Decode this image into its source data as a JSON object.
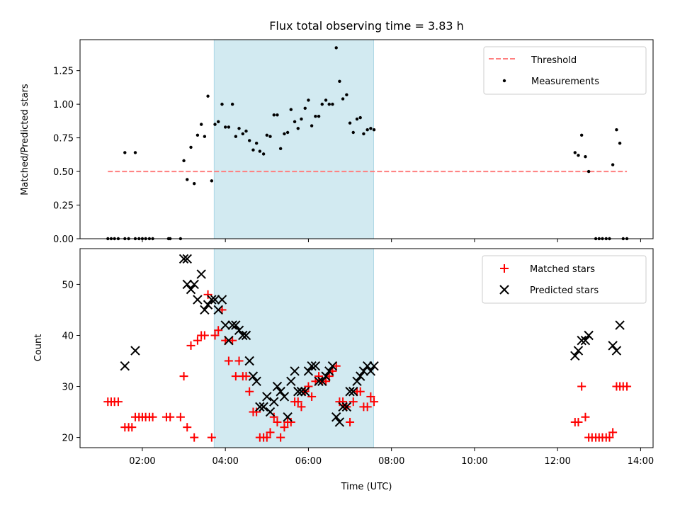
{
  "chart_data": [
    {
      "type": "scatter",
      "title": "Flux total observing time = 3.83 h",
      "xlabel": "",
      "ylabel": "Matched/Predicted stars",
      "xlim": [
        0.5,
        14.3
      ],
      "ylim": [
        0,
        1.48
      ],
      "x_ticks": [
        "02:00",
        "04:00",
        "06:00",
        "08:00",
        "10:00",
        "12:00",
        "14:00"
      ],
      "x_tick_values": [
        2,
        4,
        6,
        8,
        10,
        12,
        14
      ],
      "y_ticks": [
        "0.00",
        "0.25",
        "0.50",
        "0.75",
        "1.00",
        "1.25"
      ],
      "y_tick_values": [
        0,
        0.25,
        0.5,
        0.75,
        1.0,
        1.25
      ],
      "shaded_span": [
        3.73,
        7.57
      ],
      "shaded_color": "#add8e6",
      "legend_position": "upper right",
      "series": [
        {
          "name": "Threshold",
          "kind": "line",
          "style": "dashed",
          "color": "#ff7f7f",
          "x": [
            1.17,
            13.67
          ],
          "y": [
            0.5,
            0.5
          ]
        },
        {
          "name": "Measurements",
          "kind": "scatter",
          "marker": "dot",
          "color": "#000000",
          "x": [
            1.17,
            1.25,
            1.33,
            1.42,
            1.58,
            1.67,
            1.83,
            1.92,
            2.0,
            2.08,
            2.17,
            2.25,
            2.63,
            2.67,
            2.92,
            1.58,
            1.83,
            3.0,
            3.08,
            3.17,
            3.25,
            3.33,
            3.42,
            3.5,
            3.58,
            3.67,
            3.75,
            3.83,
            3.92,
            4.0,
            4.08,
            4.17,
            4.25,
            4.33,
            4.42,
            4.5,
            4.58,
            4.67,
            4.75,
            4.83,
            4.92,
            5.0,
            5.08,
            5.17,
            5.25,
            5.33,
            5.42,
            5.5,
            5.58,
            5.67,
            5.75,
            5.83,
            5.92,
            6.0,
            6.08,
            6.17,
            6.25,
            6.33,
            6.42,
            6.5,
            6.58,
            6.67,
            6.75,
            6.83,
            6.92,
            7.0,
            7.08,
            7.17,
            7.25,
            7.33,
            7.42,
            7.5,
            7.58,
            12.42,
            12.5,
            12.58,
            12.67,
            12.75,
            13.0,
            13.08,
            13.17,
            13.25,
            13.33,
            13.42,
            13.5,
            13.58,
            13.67,
            12.92
          ],
          "y": [
            0,
            0,
            0,
            0,
            0,
            0,
            0,
            0,
            0,
            0,
            0,
            0,
            0,
            0,
            0,
            0.64,
            0.64,
            0.58,
            0.44,
            0.68,
            0.41,
            0.77,
            0.85,
            0.76,
            1.06,
            0.43,
            0.85,
            0.87,
            1.0,
            0.83,
            0.83,
            1.0,
            0.76,
            0.82,
            0.78,
            0.8,
            0.73,
            0.66,
            0.71,
            0.65,
            0.63,
            0.77,
            0.76,
            0.92,
            0.92,
            0.67,
            0.78,
            0.79,
            0.96,
            0.87,
            0.82,
            0.89,
            0.97,
            1.03,
            0.84,
            0.91,
            0.91,
            1.0,
            1.03,
            1.0,
            1.0,
            1.42,
            1.17,
            1.04,
            1.07,
            0.86,
            0.79,
            0.89,
            0.9,
            0.78,
            0.81,
            0.82,
            0.81,
            0.64,
            0.62,
            0.77,
            0.61,
            0.5,
            0,
            0,
            0,
            0,
            0.55,
            0.81,
            0.71,
            0,
            0,
            0
          ]
        }
      ]
    },
    {
      "type": "scatter",
      "title": "",
      "xlabel": "Time (UTC)",
      "ylabel": "Count",
      "xlim": [
        0.5,
        14.3
      ],
      "ylim": [
        18,
        57
      ],
      "x_ticks": [
        "02:00",
        "04:00",
        "06:00",
        "08:00",
        "10:00",
        "12:00",
        "14:00"
      ],
      "x_tick_values": [
        2,
        4,
        6,
        8,
        10,
        12,
        14
      ],
      "y_ticks": [
        "20",
        "30",
        "40",
        "50"
      ],
      "y_tick_values": [
        20,
        30,
        40,
        50
      ],
      "shaded_span": [
        3.73,
        7.57
      ],
      "shaded_color": "#add8e6",
      "legend_position": "upper right",
      "series": [
        {
          "name": "Matched stars",
          "kind": "scatter",
          "marker": "plus",
          "color": "#ff0000",
          "x": [
            1.17,
            1.25,
            1.33,
            1.42,
            1.58,
            1.67,
            1.75,
            1.83,
            1.92,
            2.0,
            2.08,
            2.17,
            2.25,
            2.58,
            2.67,
            2.92,
            3.0,
            3.08,
            3.17,
            3.25,
            3.33,
            3.42,
            3.5,
            3.58,
            3.67,
            3.75,
            3.83,
            3.92,
            4.0,
            4.08,
            4.17,
            4.25,
            4.33,
            4.42,
            4.5,
            4.58,
            4.67,
            4.75,
            4.83,
            4.92,
            5.0,
            5.08,
            5.17,
            5.25,
            5.33,
            5.42,
            5.5,
            5.58,
            5.67,
            5.75,
            5.83,
            5.92,
            6.0,
            6.08,
            6.17,
            6.25,
            6.33,
            6.42,
            6.5,
            6.58,
            6.67,
            6.75,
            6.83,
            6.92,
            7.0,
            7.08,
            7.17,
            7.25,
            7.33,
            7.42,
            7.5,
            7.58,
            12.42,
            12.5,
            12.58,
            12.67,
            12.75,
            12.83,
            12.92,
            13.0,
            13.08,
            13.17,
            13.25,
            13.33,
            13.42,
            13.5,
            13.58,
            13.67
          ],
          "y": [
            27,
            27,
            27,
            27,
            22,
            22,
            22,
            24,
            24,
            24,
            24,
            24,
            24,
            24,
            24,
            24,
            32,
            22,
            38,
            20,
            39,
            40,
            40,
            48,
            20,
            40,
            41,
            45,
            39,
            35,
            39,
            32,
            35,
            32,
            32,
            29,
            25,
            25,
            20,
            20,
            20,
            21,
            24,
            23,
            20,
            22,
            23,
            23,
            27,
            27,
            26,
            29,
            30,
            28,
            31,
            32,
            31,
            31,
            32,
            33,
            34,
            27,
            27,
            26,
            23,
            27,
            29,
            29,
            26,
            26,
            28,
            27,
            23,
            23,
            30,
            24,
            20,
            20,
            20,
            20,
            20,
            20,
            20,
            21,
            30,
            30,
            30,
            30
          ]
        },
        {
          "name": "Predicted stars",
          "kind": "scatter",
          "marker": "x",
          "color": "#000000",
          "x": [
            1.58,
            1.83,
            3.0,
            3.08,
            3.08,
            3.17,
            3.25,
            3.33,
            3.42,
            3.5,
            3.58,
            3.67,
            3.75,
            3.83,
            3.92,
            4.0,
            4.08,
            4.17,
            4.25,
            4.33,
            4.42,
            4.5,
            4.58,
            4.67,
            4.75,
            4.83,
            4.92,
            5.0,
            5.08,
            5.17,
            5.25,
            5.33,
            5.42,
            5.5,
            5.58,
            5.67,
            5.75,
            5.83,
            5.92,
            6.0,
            6.08,
            6.17,
            6.25,
            6.33,
            6.42,
            6.5,
            6.58,
            6.67,
            6.75,
            6.83,
            6.92,
            7.0,
            7.08,
            7.17,
            7.25,
            7.33,
            7.42,
            7.5,
            7.58,
            12.42,
            12.5,
            12.58,
            12.67,
            12.75,
            13.33,
            13.42,
            13.5
          ],
          "y": [
            34,
            37,
            55,
            55,
            50,
            49,
            50,
            47,
            52,
            45,
            46,
            47,
            47,
            45,
            47,
            42,
            39,
            42,
            42,
            41,
            40,
            40,
            35,
            32,
            31,
            26,
            26,
            28,
            25,
            27,
            30,
            29,
            28,
            24,
            31,
            33,
            29,
            29,
            29,
            33,
            34,
            34,
            31,
            31,
            32,
            33,
            34,
            24,
            23,
            26,
            26,
            29,
            29,
            31,
            32,
            33,
            34,
            33,
            34,
            36,
            37,
            39,
            39,
            40,
            38,
            37,
            42
          ]
        }
      ]
    }
  ]
}
